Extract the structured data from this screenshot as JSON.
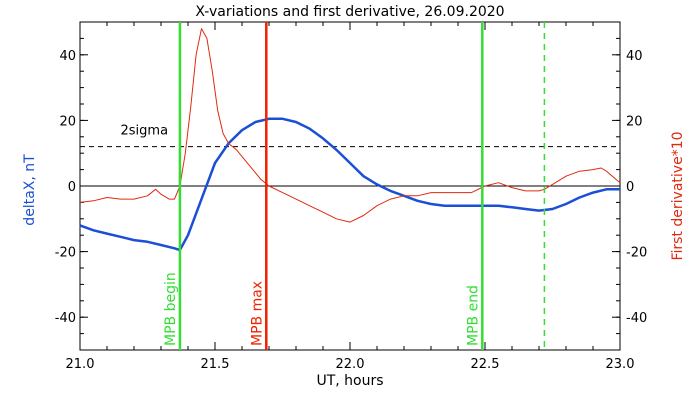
{
  "chart_data": {
    "type": "line",
    "title": "X-variations and first derivative, 26.09.2020",
    "xlabel": "UT, hours",
    "ylabel_left": "deltaX, nT",
    "ylabel_right": "First derivative*10",
    "xlim": [
      21.0,
      23.0
    ],
    "ylim": [
      -50,
      50
    ],
    "xticks": [
      "21.0",
      "21.5",
      "22.0",
      "22.5",
      "23.0"
    ],
    "yticks": [
      "-40",
      "-20",
      "0",
      "20",
      "40"
    ],
    "colors": {
      "deltaX": "#1a4fd6",
      "derivative": "#e02a10",
      "green": "#33dd33",
      "red": "#ee2200",
      "black": "#000000"
    },
    "series": [
      {
        "name": "deltaX, nT",
        "x": [
          21.0,
          21.05,
          21.1,
          21.15,
          21.2,
          21.25,
          21.3,
          21.35,
          21.37,
          21.4,
          21.45,
          21.5,
          21.55,
          21.6,
          21.65,
          21.7,
          21.75,
          21.8,
          21.85,
          21.9,
          21.95,
          22.0,
          22.05,
          22.1,
          22.15,
          22.2,
          22.25,
          22.3,
          22.35,
          22.4,
          22.45,
          22.5,
          22.55,
          22.6,
          22.65,
          22.7,
          22.75,
          22.8,
          22.85,
          22.9,
          22.95,
          23.0
        ],
        "y": [
          -12,
          -13.5,
          -14.5,
          -15.5,
          -16.5,
          -17,
          -18,
          -19,
          -19.5,
          -15,
          -4,
          7,
          13,
          17,
          19.5,
          20.5,
          20.5,
          19.5,
          17.5,
          14.5,
          11,
          7,
          3,
          0.5,
          -1.5,
          -3,
          -4.5,
          -5.5,
          -6,
          -6,
          -6,
          -6,
          -6,
          -6.5,
          -7,
          -7.5,
          -7,
          -5.5,
          -3.5,
          -2,
          -1,
          -1
        ]
      },
      {
        "name": "First derivative*10",
        "x": [
          21.0,
          21.05,
          21.1,
          21.15,
          21.2,
          21.25,
          21.28,
          21.3,
          21.33,
          21.35,
          21.37,
          21.39,
          21.41,
          21.43,
          21.45,
          21.47,
          21.49,
          21.51,
          21.53,
          21.55,
          21.58,
          21.61,
          21.64,
          21.67,
          21.7,
          21.75,
          21.8,
          21.85,
          21.9,
          21.95,
          22.0,
          22.05,
          22.1,
          22.15,
          22.2,
          22.25,
          22.3,
          22.35,
          22.4,
          22.45,
          22.5,
          22.55,
          22.6,
          22.65,
          22.7,
          22.72,
          22.75,
          22.8,
          22.85,
          22.9,
          22.93,
          22.95,
          23.0
        ],
        "y": [
          -5,
          -4.5,
          -3.5,
          -4,
          -4,
          -3,
          -1,
          -2.5,
          -4,
          -4,
          0,
          10,
          24,
          40,
          48,
          45,
          35,
          23,
          16,
          13,
          11,
          8,
          5,
          2,
          0,
          -2,
          -4,
          -6,
          -8,
          -10,
          -11,
          -9,
          -6,
          -4,
          -3,
          -3,
          -2,
          -2,
          -2,
          -2,
          0,
          1,
          -0.5,
          -1.5,
          -1.5,
          -1,
          0.5,
          3,
          4.5,
          5,
          5.5,
          4.5,
          1
        ]
      }
    ],
    "threshold": {
      "label": "2sigma",
      "y": 12
    },
    "markers": [
      {
        "x": 21.37,
        "label": "MPB begin",
        "color": "green",
        "dashed": false
      },
      {
        "x": 21.69,
        "label": "MPB max",
        "color": "red",
        "dashed": false
      },
      {
        "x": 22.49,
        "label": "MPB end",
        "color": "green",
        "dashed": false
      },
      {
        "x": 22.72,
        "label": "",
        "color": "green",
        "dashed": true
      }
    ]
  }
}
